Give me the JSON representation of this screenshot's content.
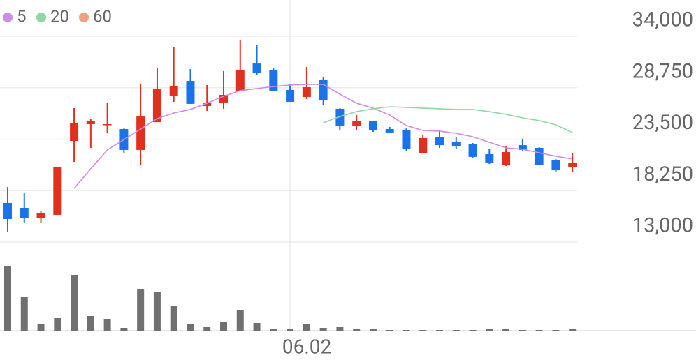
{
  "chart_data": {
    "type": "candlestick",
    "categories": [
      null,
      null,
      null,
      null,
      null,
      null,
      null,
      null,
      null,
      null,
      null,
      null,
      null,
      null,
      null,
      null,
      null,
      "06.02",
      null,
      null,
      null,
      null,
      null,
      null,
      null,
      null,
      null,
      null,
      null,
      null,
      null,
      null,
      null,
      null,
      null
    ],
    "open": [
      16990,
      16490,
      15490,
      15780,
      23320,
      25030,
      24960,
      24530,
      22400,
      25240,
      27950,
      29440,
      26880,
      27240,
      28450,
      31220,
      30580,
      28520,
      27810,
      29590,
      26600,
      24890,
      25320,
      24530,
      24460,
      22110,
      23750,
      23180,
      22970,
      21970,
      20830,
      22890,
      22610,
      21330,
      20690
    ],
    "high": [
      18620,
      17980,
      16200,
      20620,
      26670,
      25600,
      27170,
      24600,
      29090,
      30800,
      32930,
      30650,
      29020,
      30440,
      33570,
      33150,
      30730,
      29090,
      30870,
      29870,
      26670,
      25960,
      25390,
      24750,
      24600,
      23890,
      24390,
      23680,
      23110,
      22540,
      22750,
      23540,
      22680,
      21470,
      22110
    ],
    "low": [
      14070,
      14920,
      14920,
      15780,
      21190,
      22610,
      24110,
      22040,
      20830,
      25240,
      27310,
      27100,
      26380,
      26600,
      28450,
      30010,
      28450,
      27310,
      27590,
      27020,
      24390,
      24390,
      24250,
      24180,
      22330,
      22040,
      22610,
      22470,
      21610,
      20970,
      20760,
      22330,
      20900,
      20120,
      20190
    ],
    "close": [
      15350,
      15490,
      15920,
      20620,
      25100,
      25390,
      25030,
      22400,
      25810,
      28590,
      28880,
      27100,
      27240,
      28020,
      30510,
      30230,
      28450,
      27310,
      28800,
      27520,
      24890,
      25320,
      24390,
      24180,
      22540,
      23610,
      22890,
      22820,
      21690,
      21120,
      22180,
      22400,
      20900,
      20330,
      21120
    ],
    "up_color": "#e0301e",
    "down_color": "#1a73e8",
    "volume": [
      93,
      48,
      10,
      18,
      80,
      21,
      17,
      4,
      59,
      56,
      36,
      9,
      5,
      13,
      30,
      11,
      3,
      3,
      10,
      4,
      5,
      3,
      2,
      1,
      1,
      1,
      1,
      1,
      1,
      2,
      2,
      1,
      1,
      1,
      2
    ],
    "volume_color": "#707070",
    "volume_ylim": [
      0,
      100
    ],
    "moving_averages": [
      {
        "name": "5",
        "color": "#d08be6",
        "values": [
          null,
          null,
          null,
          null,
          18480,
          20470,
          22400,
          23460,
          24530,
          25600,
          26170,
          26530,
          27170,
          27880,
          28450,
          28660,
          28870,
          29020,
          29090,
          29090,
          28090,
          27170,
          26670,
          25960,
          24890,
          24390,
          24320,
          24100,
          23750,
          23180,
          22610,
          22470,
          22110,
          21760,
          21470
        ]
      },
      {
        "name": "20",
        "color": "#8ed8a2",
        "values": [
          null,
          null,
          null,
          null,
          null,
          null,
          null,
          null,
          null,
          null,
          null,
          null,
          null,
          null,
          null,
          null,
          null,
          null,
          null,
          25170,
          25810,
          26310,
          26600,
          26810,
          26740,
          26670,
          26600,
          26530,
          26530,
          26310,
          26030,
          25670,
          25390,
          24960,
          24180
        ]
      },
      {
        "name": "60",
        "color": "#f0a080",
        "values": [
          null,
          null,
          null,
          null,
          null,
          null,
          null,
          null,
          null,
          null,
          null,
          null,
          null,
          null,
          null,
          null,
          null,
          null,
          null,
          null,
          null,
          null,
          null,
          null,
          null,
          null,
          null,
          null,
          null,
          null,
          null,
          null,
          null,
          null,
          null
        ]
      }
    ],
    "ylim": [
      13000,
      34000
    ],
    "yticks": [
      {
        "value": 13000,
        "label": "13,000"
      },
      {
        "value": 18250,
        "label": "18,250"
      },
      {
        "value": 23500,
        "label": "23,500"
      },
      {
        "value": 28750,
        "label": "28,750"
      },
      {
        "value": 34000,
        "label": "34,000"
      }
    ],
    "grid": true
  }
}
